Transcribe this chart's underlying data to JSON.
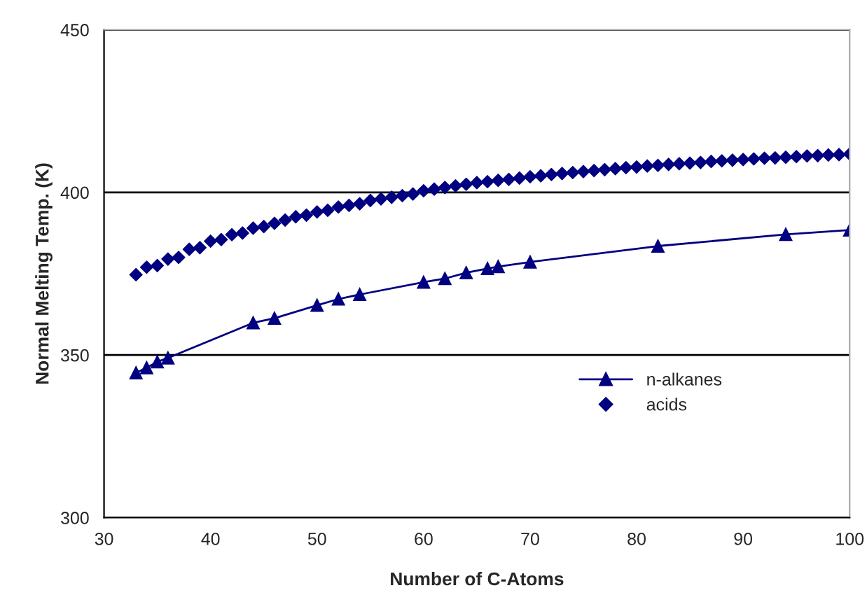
{
  "chart_data": {
    "type": "line",
    "xlabel": "Number of C-Atoms",
    "ylabel": "Normal Melting Temp. (K)",
    "xlim": [
      30,
      100
    ],
    "xticks": [
      30,
      40,
      50,
      60,
      70,
      80,
      90,
      100
    ],
    "ylim": [
      300,
      450
    ],
    "yticks": [
      300,
      350,
      400,
      450
    ],
    "grid": "y",
    "legend": "bottom right",
    "series": [
      {
        "name": "n-alkanes",
        "marker": "triangle",
        "color": "#000080",
        "x": [
          33,
          34,
          35,
          36,
          44,
          46,
          50,
          52,
          54,
          60,
          62,
          64,
          66,
          67,
          70,
          82,
          94,
          100
        ],
        "values": [
          344.5,
          346.1,
          347.9,
          349.1,
          359.9,
          361.3,
          365.3,
          367.2,
          368.6,
          372.4,
          373.5,
          375.3,
          376.6,
          377.2,
          378.6,
          383.5,
          387.1,
          388.4
        ]
      },
      {
        "name": "acids",
        "type": "scatter",
        "marker": "diamond",
        "color": "#000080",
        "x": [
          33,
          34,
          35,
          36,
          37,
          38,
          39,
          40,
          41,
          42,
          43,
          44,
          45,
          46,
          47,
          48,
          49,
          50,
          51,
          52,
          53,
          54,
          55,
          56,
          57,
          58,
          59,
          60,
          61,
          62,
          63,
          64,
          65,
          66,
          67,
          68,
          69,
          70,
          71,
          72,
          73,
          74,
          75,
          76,
          77,
          78,
          79,
          80,
          81,
          82,
          83,
          84,
          85,
          86,
          87,
          88,
          89,
          90,
          91,
          92,
          93,
          94,
          95,
          96,
          97,
          98,
          99,
          100
        ],
        "values": [
          374.7,
          377,
          377.5,
          379.5,
          380,
          382.5,
          383,
          385,
          385.5,
          387,
          387.5,
          389,
          389.5,
          390.5,
          391.5,
          392.5,
          393,
          394,
          394.5,
          395.5,
          396,
          396.5,
          397.5,
          398,
          398.5,
          399,
          399.5,
          400.5,
          401,
          401.5,
          402,
          402.5,
          403,
          403.3,
          403.7,
          404,
          404.4,
          404.8,
          405.1,
          405.5,
          405.8,
          406.1,
          406.4,
          406.7,
          407,
          407.3,
          407.6,
          407.8,
          408.1,
          408.3,
          408.6,
          408.8,
          409,
          409.2,
          409.5,
          409.7,
          409.9,
          410.1,
          410.3,
          410.5,
          410.6,
          410.8,
          411,
          411.2,
          411.3,
          411.5,
          411.6,
          411.8
        ]
      }
    ]
  }
}
